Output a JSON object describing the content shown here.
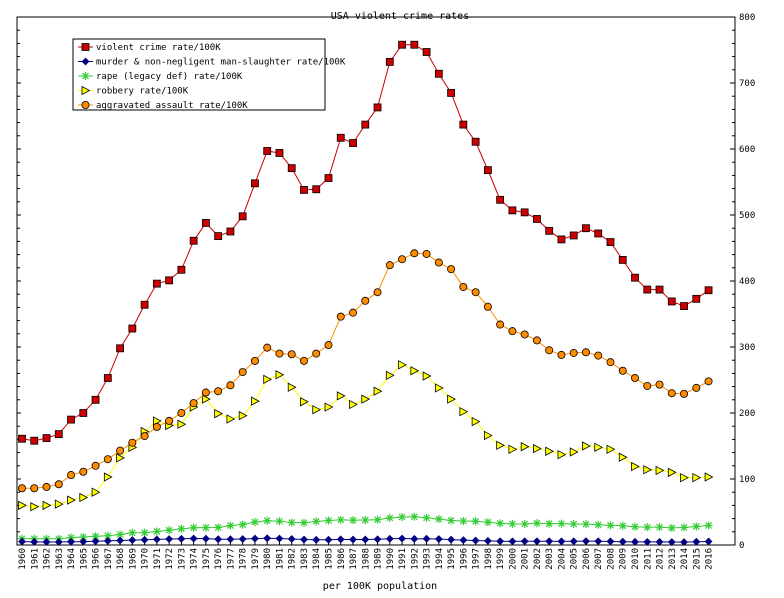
{
  "chart_data": {
    "type": "line",
    "title": "USA violent crime rates",
    "xlabel": "per 100K population",
    "ylabel": "",
    "ylim": [
      0,
      800
    ],
    "y_ticks": [
      "0",
      "100",
      "200",
      "300",
      "400",
      "500",
      "600",
      "700",
      "800"
    ],
    "grid": false,
    "legend_position": "top-left",
    "x": [
      "1960",
      "1961",
      "1962",
      "1963",
      "1964",
      "1965",
      "1966",
      "1967",
      "1968",
      "1969",
      "1970",
      "1971",
      "1972",
      "1973",
      "1974",
      "1975",
      "1976",
      "1977",
      "1978",
      "1979",
      "1980",
      "1981",
      "1982",
      "1983",
      "1984",
      "1985",
      "1986",
      "1987",
      "1988",
      "1989",
      "1990",
      "1991",
      "1992",
      "1993",
      "1994",
      "1995",
      "1996",
      "1997",
      "1998",
      "1999",
      "2000",
      "2001",
      "2002",
      "2003",
      "2004",
      "2005",
      "2006",
      "2007",
      "2008",
      "2009",
      "2010",
      "2011",
      "2012",
      "2013",
      "2014",
      "2015",
      "2016"
    ],
    "series": [
      {
        "name": "violent crime rate/100K",
        "color": "#cc0000",
        "marker": "square",
        "values": [
          161,
          158,
          162,
          168,
          190,
          200,
          220,
          253,
          298,
          328,
          364,
          396,
          401,
          417,
          461,
          488,
          468,
          475,
          498,
          548,
          597,
          594,
          571,
          538,
          539,
          556,
          617,
          609,
          637,
          663,
          732,
          758,
          758,
          747,
          714,
          685,
          637,
          611,
          568,
          523,
          507,
          504,
          494,
          476,
          463,
          469,
          480,
          472,
          459,
          432,
          405,
          387,
          387,
          369,
          362,
          373,
          386
        ]
      },
      {
        "name": "murder & non-negligent man-slaughter rate/100K",
        "color": "#000080",
        "marker": "diamond",
        "values": [
          5.1,
          4.8,
          4.6,
          4.6,
          4.9,
          5.1,
          5.6,
          6.2,
          6.9,
          7.3,
          7.9,
          8.6,
          9.0,
          9.4,
          9.8,
          9.6,
          8.8,
          8.8,
          9.0,
          9.7,
          10.2,
          9.8,
          9.1,
          8.3,
          7.9,
          8.0,
          8.6,
          8.3,
          8.4,
          8.7,
          9.4,
          9.8,
          9.3,
          9.5,
          9.0,
          8.2,
          7.4,
          6.8,
          6.3,
          5.7,
          5.5,
          5.6,
          5.6,
          5.7,
          5.5,
          5.6,
          5.8,
          5.7,
          5.4,
          5.0,
          4.8,
          4.7,
          4.7,
          4.5,
          4.4,
          4.9,
          5.3
        ]
      },
      {
        "name": "rape (legacy def) rate/100K",
        "color": "#33cc33",
        "marker": "asterisk",
        "values": [
          9.6,
          9.4,
          9.4,
          9.4,
          11.2,
          12.1,
          13.2,
          14.0,
          15.9,
          18.5,
          18.7,
          20.5,
          22.5,
          24.5,
          26.2,
          26.3,
          26.6,
          29.4,
          31.0,
          34.7,
          36.8,
          36.0,
          34.0,
          33.7,
          35.7,
          37.1,
          38.1,
          37.6,
          37.8,
          38.3,
          41.1,
          42.3,
          42.8,
          41.1,
          39.3,
          37.1,
          36.3,
          35.9,
          34.5,
          32.8,
          32.0,
          31.8,
          33.1,
          32.3,
          32.4,
          31.8,
          31.6,
          30.6,
          29.8,
          29.1,
          27.7,
          27.0,
          27.1,
          25.9,
          26.6,
          28.1,
          29.6
        ]
      },
      {
        "name": "robbery rate/100K",
        "color": "#ffff00",
        "marker": "triangle",
        "values": [
          60,
          58,
          60,
          62,
          68,
          72,
          80,
          103,
          132,
          148,
          172,
          188,
          181,
          183,
          209,
          221,
          199,
          191,
          196,
          218,
          251,
          258,
          239,
          217,
          205,
          209,
          226,
          213,
          221,
          233,
          257,
          273,
          264,
          256,
          238,
          221,
          202,
          187,
          166,
          151,
          145,
          149,
          146,
          142,
          137,
          141,
          150,
          148,
          145,
          133,
          119,
          114,
          113,
          110,
          102,
          102,
          103
        ]
      },
      {
        "name": "aggravated assault rate/100K",
        "color": "#ff8c00",
        "marker": "circle",
        "values": [
          86,
          86,
          88,
          92,
          106,
          111,
          120,
          130,
          143,
          155,
          165,
          179,
          188,
          200,
          215,
          231,
          233,
          242,
          262,
          279,
          299,
          290,
          289,
          279,
          290,
          303,
          346,
          352,
          370,
          383,
          424,
          433,
          442,
          441,
          428,
          418,
          391,
          383,
          361,
          334,
          324,
          319,
          310,
          295,
          288,
          291,
          292,
          287,
          277,
          264,
          253,
          241,
          243,
          230,
          229,
          238,
          248
        ]
      }
    ]
  }
}
